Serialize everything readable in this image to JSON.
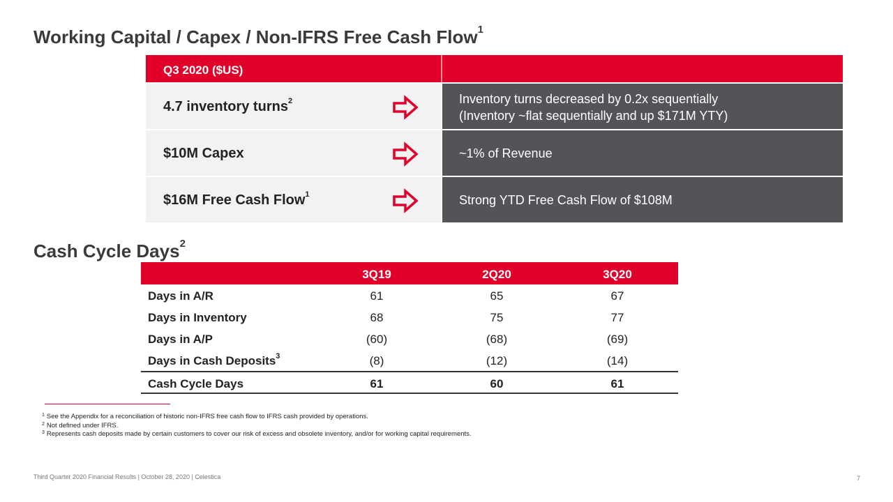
{
  "title": {
    "text": "Working Capital / Capex / Non-IFRS Free Cash Flow",
    "sup": "1"
  },
  "panel": {
    "header": "Q3 2020 ($US)",
    "rows": [
      {
        "label": "4.7 inventory turns",
        "sup": "2",
        "desc_line1": "Inventory turns decreased by 0.2x sequentially",
        "desc_line2": "(Inventory ~flat sequentially and up $171M YTY)"
      },
      {
        "label": "$10M Capex",
        "sup": "",
        "desc_line1": "~1% of Revenue",
        "desc_line2": ""
      },
      {
        "label": "$16M Free Cash Flow",
        "sup": "1",
        "desc_line1": "Strong YTD Free Cash Flow of $108M",
        "desc_line2": ""
      }
    ],
    "arrow_icon": "right-arrow-icon",
    "accent_color": "#e0002a",
    "desc_bg_color": "#525458"
  },
  "cash_cycle": {
    "heading": "Cash Cycle Days",
    "heading_sup": "2",
    "columns": [
      "3Q19",
      "2Q20",
      "3Q20"
    ],
    "rows": [
      {
        "label": "Days in A/R",
        "sup": "",
        "values": [
          "61",
          "65",
          "67"
        ]
      },
      {
        "label": "Days in Inventory",
        "sup": "",
        "values": [
          "68",
          "75",
          "77"
        ]
      },
      {
        "label": "Days in A/P",
        "sup": "",
        "values": [
          "(60)",
          "(68)",
          "(69)"
        ]
      },
      {
        "label": "Days in Cash Deposits",
        "sup": "3",
        "values": [
          "(8)",
          "(12)",
          "(14)"
        ]
      }
    ],
    "total": {
      "label": "Cash Cycle Days",
      "values": [
        "61",
        "60",
        "61"
      ]
    }
  },
  "footnotes": [
    {
      "num": "1",
      "text": "See the Appendix for a reconciliation of historic non-IFRS free cash flow to IFRS cash provided by operations."
    },
    {
      "num": "2",
      "text": "Not defined under IFRS."
    },
    {
      "num": "3",
      "text": "Represents cash deposits made by certain customers to cover our risk of excess and obsolete inventory, and/or for working capital requirements."
    }
  ],
  "footer": "Third Quarter 2020 Financial Results |  October 28, 2020  |  Celestica",
  "page_number": "7"
}
